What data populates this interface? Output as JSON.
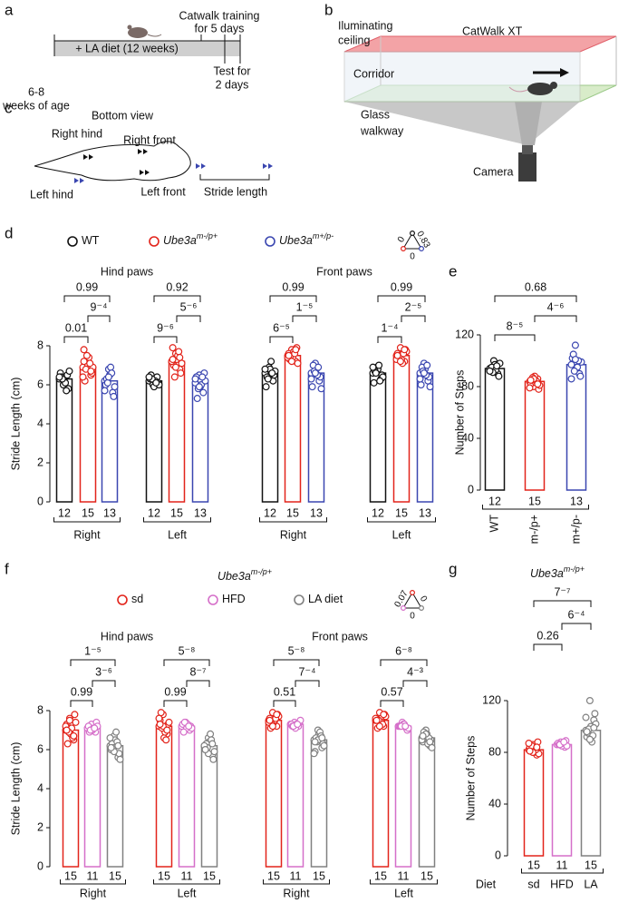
{
  "panel_a": {
    "letter": "a",
    "diet": "+ LA diet (12 weeks)",
    "age": [
      "6-8",
      "weeks of age"
    ],
    "training": [
      "Catwalk training",
      "for 5 days"
    ],
    "test": [
      "Test for",
      "2 days"
    ]
  },
  "panel_b": {
    "letter": "b",
    "ceiling": [
      "Iluminating",
      "ceiling"
    ],
    "product": "CatWalk XT",
    "corridor": "Corridor",
    "walkway": [
      "Glass",
      "walkway"
    ],
    "camera": "Camera"
  },
  "panel_c": {
    "letter": "c",
    "title": "Bottom view",
    "right_hind": "Right hind",
    "right_front": "Right front",
    "left_hind": "Left hind",
    "left_front": "Left front",
    "stride": "Stride length"
  },
  "chart_data": [
    {
      "letter": "d",
      "type": "bar",
      "ylabel": "Stride Length (cm)",
      "ylim": [
        0,
        8
      ],
      "yticks": [
        0,
        2,
        4,
        6,
        8
      ],
      "groups": [
        {
          "title": "Hind paws",
          "categories": [
            "Right",
            "Left"
          ]
        },
        {
          "title": "Front paws",
          "categories": [
            "Right",
            "Left"
          ]
        }
      ],
      "series": [
        {
          "name": "WT",
          "color": "#111111",
          "values": [
            6.3,
            6.2,
            6.6,
            6.6
          ],
          "n": [
            12,
            12,
            12,
            12
          ],
          "points": [
            [
              6.3,
              6.0,
              6.5,
              6.6,
              6.2,
              5.8,
              6.4,
              6.1,
              6.7,
              6.3,
              5.7,
              6.4
            ],
            [
              6.2,
              6.0,
              6.4,
              6.3,
              5.9,
              6.1,
              6.5,
              6.2,
              6.0,
              6.3,
              6.1,
              6.4
            ],
            [
              6.6,
              6.9,
              6.2,
              5.9,
              6.8,
              6.5,
              6.4,
              7.2,
              6.7,
              6.3,
              6.6,
              6.8
            ],
            [
              6.6,
              6.9,
              6.3,
              6.1,
              6.8,
              6.5,
              6.7,
              7.0,
              6.4,
              6.6,
              6.2,
              6.9
            ]
          ]
        },
        {
          "name": "Ube3a",
          "name_sup": "m-/p+",
          "color": "#e2231a",
          "values": [
            6.9,
            7.2,
            7.5,
            7.5
          ],
          "n": [
            15,
            15,
            15,
            15
          ],
          "points": [
            [
              6.9,
              7.3,
              6.5,
              7.8,
              7.0,
              6.6,
              6.2,
              7.4,
              6.9,
              6.8,
              7.1,
              6.4,
              7.5,
              6.7,
              7.2
            ],
            [
              7.2,
              7.6,
              6.8,
              7.9,
              7.3,
              6.6,
              7.0,
              7.5,
              7.1,
              6.4,
              7.7,
              7.2,
              6.9,
              7.4,
              7.3
            ],
            [
              7.5,
              7.8,
              7.2,
              7.6,
              7.4,
              7.9,
              7.3,
              7.7,
              7.1,
              7.5,
              7.6,
              7.4,
              7.2,
              7.8,
              7.5
            ],
            [
              7.5,
              7.9,
              7.2,
              7.6,
              7.3,
              7.8,
              7.4,
              7.1,
              7.7,
              7.5,
              7.6,
              7.3,
              7.2,
              7.8,
              7.5
            ]
          ]
        },
        {
          "name": "Ube3a",
          "name_sup": "m+/p-",
          "color": "#3a46b0",
          "values": [
            6.2,
            6.1,
            6.6,
            6.6
          ],
          "n": [
            13,
            13,
            13,
            13
          ],
          "points": [
            [
              6.2,
              6.8,
              5.6,
              6.0,
              6.5,
              5.4,
              6.3,
              6.9,
              5.9,
              6.1,
              6.6,
              5.7,
              6.4
            ],
            [
              6.1,
              6.5,
              5.6,
              6.4,
              5.9,
              6.6,
              5.3,
              6.0,
              6.2,
              5.8,
              6.4,
              6.3,
              5.9
            ],
            [
              6.6,
              7.1,
              6.2,
              5.9,
              6.8,
              6.4,
              7.0,
              6.5,
              5.8,
              6.7,
              6.9,
              6.3,
              6.6
            ],
            [
              6.6,
              7.1,
              6.2,
              6.0,
              6.8,
              6.4,
              6.9,
              6.5,
              5.9,
              6.7,
              7.0,
              6.3,
              6.6
            ]
          ]
        }
      ],
      "pvalues": [
        [
          "0.99",
          "9⁻⁴",
          "0.01"
        ],
        [
          "0.92",
          "5⁻⁶",
          "9⁻⁶"
        ],
        [
          "0.99",
          "1⁻⁵",
          "6⁻⁵"
        ],
        [
          "0.99",
          "2⁻⁵",
          "1⁻⁴"
        ]
      ],
      "pvalue_triangle": {
        "left": "0",
        "right": "0.83",
        "bottom": "0"
      }
    },
    {
      "letter": "e",
      "type": "bar",
      "ylabel": "Number of Steps",
      "ylim": [
        0,
        120
      ],
      "yticks": [
        0,
        40,
        80,
        120
      ],
      "categories": [
        "WT",
        "m-/p+",
        "m+/p-"
      ],
      "colors": [
        "#111111",
        "#e2231a",
        "#3a46b0"
      ],
      "values": [
        94,
        84,
        97
      ],
      "n": [
        12,
        15,
        13
      ],
      "points": [
        [
          94,
          100,
          90,
          92,
          97,
          88,
          95,
          93,
          98,
          91,
          96,
          92
        ],
        [
          84,
          80,
          86,
          82,
          88,
          78,
          85,
          83,
          81,
          87,
          84,
          79,
          86,
          82,
          85
        ],
        [
          97,
          112,
          90,
          102,
          94,
          88,
          105,
          95,
          99,
          92,
          100,
          86,
          101
        ]
      ],
      "pvalues": [
        "0.68",
        "4⁻⁶",
        "8⁻⁵"
      ]
    },
    {
      "letter": "f",
      "type": "bar",
      "title": "Ube3a",
      "title_sup": "m-/p+",
      "ylabel": "Stride Length (cm)",
      "ylim": [
        0,
        8
      ],
      "yticks": [
        0,
        2,
        4,
        6,
        8
      ],
      "groups": [
        {
          "title": "Hind paws",
          "categories": [
            "Right",
            "Left"
          ]
        },
        {
          "title": "Front paws",
          "categories": [
            "Right",
            "Left"
          ]
        }
      ],
      "series": [
        {
          "name": "sd",
          "color": "#e2231a",
          "values": [
            7.0,
            7.2,
            7.5,
            7.5
          ],
          "n": [
            15,
            15,
            15,
            15
          ],
          "points": [
            [
              7.0,
              7.6,
              6.5,
              7.3,
              6.8,
              7.8,
              6.3,
              7.1,
              7.4,
              6.9,
              6.6,
              7.2,
              7.5,
              6.7,
              7.0
            ],
            [
              7.2,
              7.8,
              6.8,
              7.5,
              6.6,
              7.3,
              7.9,
              6.9,
              7.4,
              7.1,
              6.5,
              7.6,
              7.2,
              7.0,
              7.3
            ],
            [
              7.5,
              7.9,
              7.2,
              7.6,
              7.4,
              7.8,
              7.1,
              7.5,
              7.7,
              7.3,
              7.6,
              7.4,
              7.2,
              7.8,
              7.5
            ],
            [
              7.5,
              7.9,
              7.2,
              7.6,
              7.3,
              7.8,
              7.1,
              7.4,
              7.7,
              7.5,
              7.3,
              7.6,
              7.2,
              7.8,
              7.5
            ]
          ]
        },
        {
          "name": "HFD",
          "color": "#d56fc9",
          "values": [
            7.1,
            7.2,
            7.3,
            7.2
          ],
          "n": [
            11,
            11,
            11,
            11
          ],
          "points": [
            [
              7.1,
              7.3,
              6.9,
              7.2,
              7.0,
              7.4,
              6.9,
              7.1,
              7.2,
              7.0,
              7.1
            ],
            [
              7.2,
              7.4,
              7.0,
              7.3,
              7.1,
              7.2,
              6.9,
              7.3,
              7.1,
              7.4,
              7.2
            ],
            [
              7.3,
              7.4,
              7.2,
              7.3,
              7.1,
              7.4,
              7.2,
              7.3,
              7.5,
              7.2,
              7.3
            ],
            [
              7.2,
              7.4,
              7.1,
              7.2,
              7.3,
              7.0,
              7.2,
              7.3,
              7.1,
              7.2,
              7.2
            ]
          ]
        },
        {
          "name": "LA diet",
          "color": "#808080",
          "values": [
            6.2,
            6.2,
            6.5,
            6.6
          ],
          "n": [
            15,
            15,
            15,
            15
          ],
          "points": [
            [
              6.2,
              6.7,
              5.6,
              6.0,
              6.5,
              5.8,
              6.3,
              6.9,
              5.5,
              6.1,
              6.4,
              6.6,
              5.9,
              6.2,
              6.1
            ],
            [
              6.2,
              6.6,
              5.7,
              6.0,
              6.4,
              5.5,
              6.3,
              6.8,
              5.9,
              6.1,
              6.5,
              6.2,
              5.8,
              6.3,
              6.0
            ],
            [
              6.5,
              7.0,
              6.1,
              5.9,
              6.8,
              6.3,
              6.6,
              6.9,
              6.2,
              6.4,
              6.7,
              5.8,
              6.5,
              6.6,
              6.4
            ],
            [
              6.6,
              7.0,
              6.2,
              6.4,
              6.8,
              6.5,
              6.9,
              6.3,
              6.1,
              6.7,
              6.6,
              6.5,
              6.8,
              6.4,
              6.7
            ]
          ]
        }
      ],
      "pvalues": [
        [
          "1⁻⁵",
          "3⁻⁶",
          "0.99"
        ],
        [
          "5⁻⁸",
          "8⁻⁷",
          "0.99"
        ],
        [
          "5⁻⁸",
          "7⁻⁴",
          "0.51"
        ],
        [
          "6⁻⁸",
          "4⁻³",
          "0.57"
        ]
      ],
      "pvalue_triangle": {
        "left": "0.07",
        "right": "0",
        "bottom": "0"
      }
    },
    {
      "letter": "g",
      "type": "bar",
      "title": "Ube3a",
      "title_sup": "m-/p+",
      "ylabel": "Number of Steps",
      "xlabel": "Diet",
      "ylim": [
        0,
        120
      ],
      "yticks": [
        0,
        40,
        80,
        120
      ],
      "categories": [
        "sd",
        "HFD",
        "LA"
      ],
      "colors": [
        "#e2231a",
        "#d56fc9",
        "#808080"
      ],
      "values": [
        82,
        86,
        97
      ],
      "n": [
        15,
        11,
        15
      ],
      "points": [
        [
          82,
          86,
          78,
          84,
          80,
          88,
          81,
          83,
          79,
          85,
          82,
          87,
          80,
          84,
          81
        ],
        [
          86,
          88,
          84,
          87,
          85,
          89,
          86,
          87,
          85,
          86,
          88
        ],
        [
          97,
          120,
          105,
          92,
          100,
          110,
          95,
          88,
          102,
          98,
          93,
          107,
          90,
          99,
          96
        ]
      ],
      "pvalues": [
        "7⁻⁷",
        "6⁻⁴",
        "0.26"
      ]
    }
  ]
}
